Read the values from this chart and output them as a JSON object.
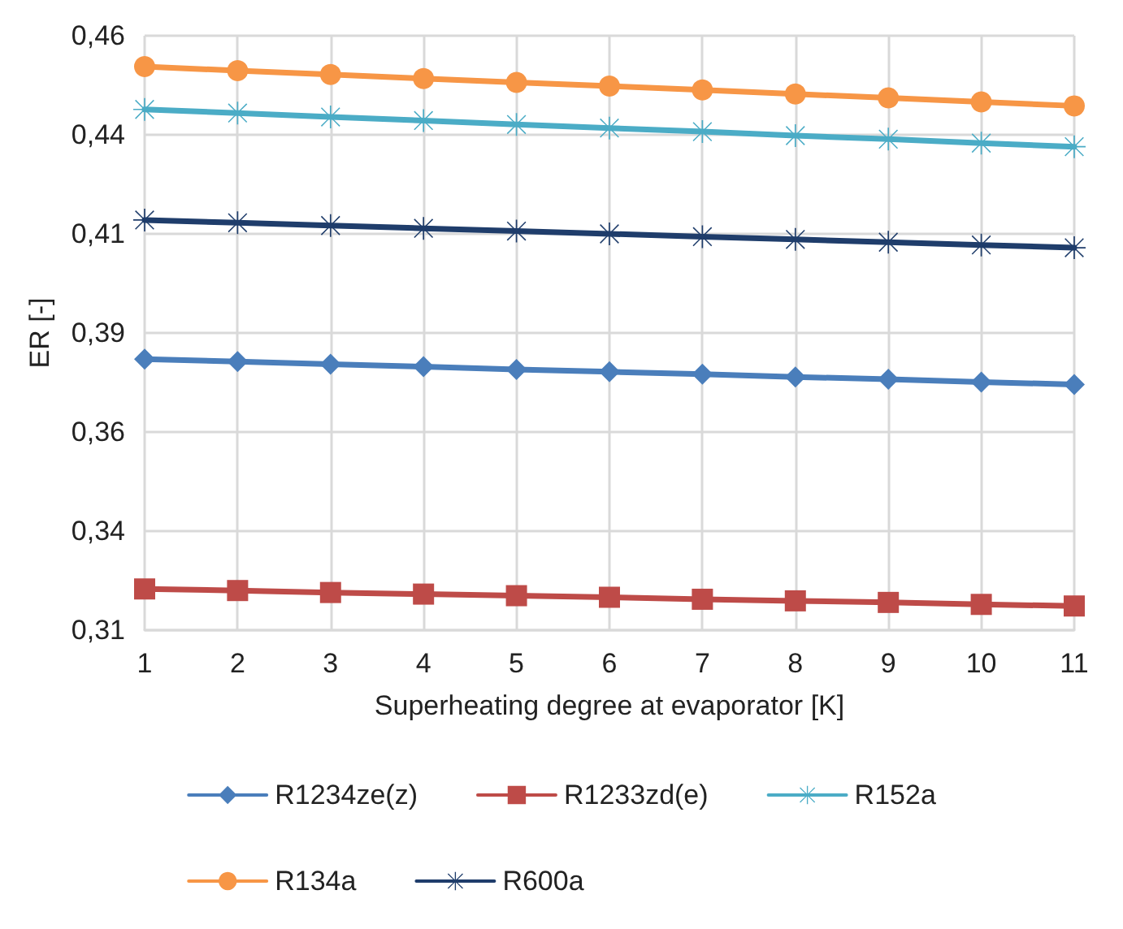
{
  "chart_data": {
    "type": "line",
    "xlabel": "Superheating degree at evaporator [K]",
    "ylabel": "ER [-]",
    "categories": [
      "1",
      "2",
      "3",
      "4",
      "5",
      "6",
      "7",
      "8",
      "9",
      "10",
      "11"
    ],
    "ylim": [
      0.31,
      0.46
    ],
    "yticks": [
      {
        "value": 0.31,
        "label": "0,31"
      },
      {
        "value": 0.335,
        "label": "0,34"
      },
      {
        "value": 0.36,
        "label": "0,36"
      },
      {
        "value": 0.385,
        "label": "0,39"
      },
      {
        "value": 0.41,
        "label": "0,41"
      },
      {
        "value": 0.435,
        "label": "0,44"
      },
      {
        "value": 0.46,
        "label": "0,46"
      }
    ],
    "grid": true,
    "legend": "bottom",
    "line_style": "solid",
    "series": [
      {
        "name": "R1234ze(z)",
        "color": "#4a7ebb",
        "marker": "diamond",
        "values": [
          0.3784,
          0.3778,
          0.3771,
          0.3765,
          0.3758,
          0.3752,
          0.3746,
          0.3739,
          0.3733,
          0.3726,
          0.372
        ]
      },
      {
        "name": "R1233zd(e)",
        "color": "#be4b48",
        "marker": "square",
        "values": [
          0.3204,
          0.32,
          0.3195,
          0.3191,
          0.3187,
          0.3183,
          0.3178,
          0.3174,
          0.317,
          0.3165,
          0.3161
        ]
      },
      {
        "name": "R152a",
        "color": "#4bacc6",
        "marker": "cross",
        "values": [
          0.4414,
          0.4405,
          0.4395,
          0.4386,
          0.4376,
          0.4367,
          0.4358,
          0.4348,
          0.4339,
          0.4329,
          0.432
        ]
      },
      {
        "name": "R134a",
        "color": "#f79646",
        "marker": "circle",
        "values": [
          0.4522,
          0.4512,
          0.4502,
          0.4492,
          0.4482,
          0.4473,
          0.4463,
          0.4453,
          0.4443,
          0.4433,
          0.4423
        ]
      },
      {
        "name": "R600a",
        "color": "#1f3d6b",
        "marker": "cross",
        "values": [
          0.4135,
          0.4128,
          0.4121,
          0.4114,
          0.4107,
          0.41,
          0.4093,
          0.4086,
          0.4079,
          0.4072,
          0.4065
        ]
      }
    ]
  }
}
